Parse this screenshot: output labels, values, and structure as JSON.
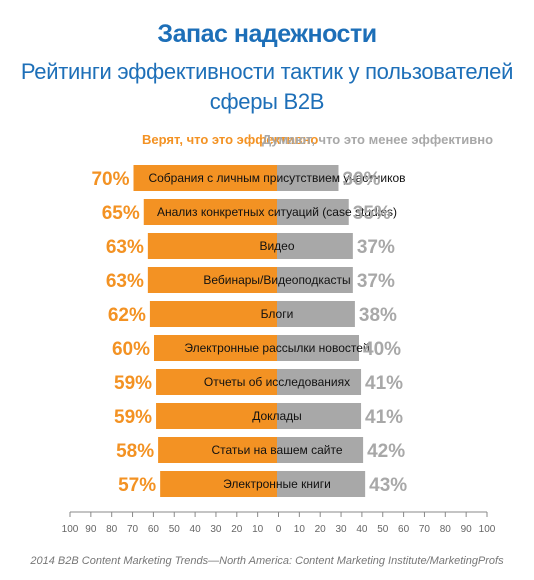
{
  "title": "Запас надежности",
  "subtitle_line1": "Рейтинги эффективности тактик у пользователей",
  "subtitle_line2": "сферы B2B",
  "legend": {
    "left": "Верят, что это эффективно",
    "right": "Думают, что это менее эффективно"
  },
  "colors": {
    "left": "#f39223",
    "right": "#a8a8a8",
    "title": "#1d6fb8"
  },
  "footer": "2014 B2B Content Marketing Trends—North America: Content Marketing Institute/MarketingProfs",
  "chart_data": {
    "type": "bar",
    "orientation": "horizontal-diverging",
    "categories": [
      "Собрания с личным присутствием участников",
      "Анализ конкретных ситуаций (case studies)",
      "Видео",
      "Вебинары/Видеоподкасты",
      "Блоги",
      "Электронные рассылки новостей",
      "Отчеты об исследованиях",
      "Доклады",
      "Статьи на вашем сайте",
      "Электронные книги"
    ],
    "series": [
      {
        "name": "Верят, что это эффективно",
        "values": [
          70,
          65,
          63,
          63,
          62,
          60,
          59,
          59,
          58,
          57
        ],
        "labels": [
          "70%",
          "65%",
          "63%",
          "63%",
          "62%",
          "60%",
          "59%",
          "59%",
          "58%",
          "57%"
        ]
      },
      {
        "name": "Думают, что это менее эффективно",
        "values": [
          30,
          35,
          37,
          37,
          38,
          40,
          41,
          41,
          42,
          43
        ],
        "labels": [
          "30%",
          "35%",
          "37%",
          "37%",
          "38%",
          "40%",
          "41%",
          "41%",
          "42%",
          "43%"
        ]
      }
    ],
    "x_ticks": [
      "100",
      "90",
      "80",
      "70",
      "60",
      "50",
      "40",
      "30",
      "20",
      "10",
      "0",
      "10",
      "20",
      "30",
      "40",
      "50",
      "60",
      "70",
      "80",
      "90",
      "100"
    ],
    "xlim": [
      -100,
      100
    ]
  }
}
